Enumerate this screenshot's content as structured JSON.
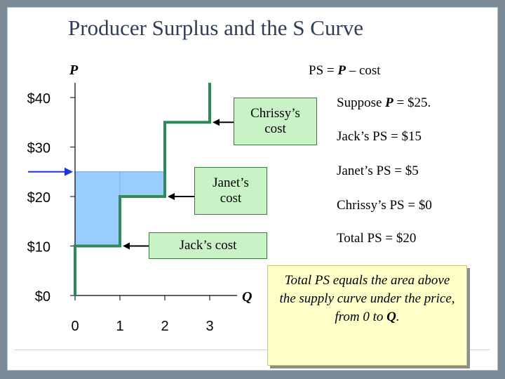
{
  "slide": {
    "title": "Producer Surplus and the S Curve"
  },
  "chart_data": {
    "type": "line",
    "title": "Producer Surplus and the S Curve",
    "xlabel": "Q",
    "ylabel": "P",
    "xlim": [
      0,
      3.5
    ],
    "ylim": [
      0,
      40
    ],
    "x_ticks": [
      0,
      1,
      2,
      3
    ],
    "x_tick_labels": [
      "0",
      "1",
      "2",
      "3"
    ],
    "y_ticks": [
      0,
      10,
      20,
      30,
      40
    ],
    "y_tick_labels": [
      "$0",
      "$10",
      "$20",
      "$30",
      "$40"
    ],
    "grid": false,
    "series": [
      {
        "name": "",
        "color": "#2e8b57",
        "steps": [
          {
            "q_from": 0,
            "q_to": 1,
            "cost": 10
          },
          {
            "q_from": 1,
            "q_to": 2,
            "cost": 20
          },
          {
            "q_from": 2,
            "q_to": 3,
            "cost": 35
          }
        ],
        "top": 43
      }
    ],
    "price": 25,
    "price_marker_color": "#2233dd",
    "surplus_fill_color": "#99ccff",
    "annotations": {
      "jack": "Jack’s cost",
      "janet_line1": "Janet’s",
      "janet_line2": "cost",
      "chrissy_line1": "Chrissy’s",
      "chrissy_line2": "cost"
    }
  },
  "ps_panel": {
    "formula_prefix": "PS = ",
    "formula_var": "P",
    "formula_suffix": " – cost",
    "suppose_prefix": "Suppose ",
    "suppose_var": "P",
    "suppose_suffix": " = $25.",
    "jack": "Jack’s PS = $15",
    "janet": "Janet’s PS = $5",
    "chrissy": "Chrissy’s PS = $0",
    "total": "Total PS = $20"
  },
  "note": {
    "text": "Total PS equals the area above the supply curve under the price, from 0 to ",
    "var": "Q",
    "end": "."
  }
}
